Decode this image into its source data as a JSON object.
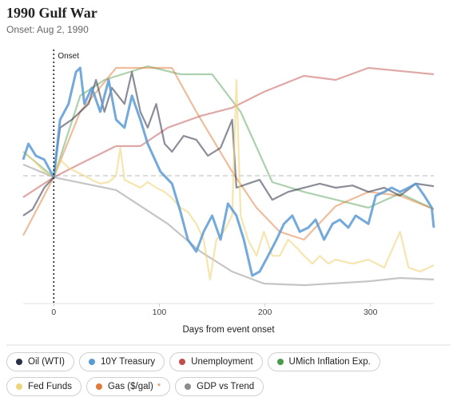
{
  "chart_data": {
    "type": "line",
    "title": "1990 Gulf War",
    "subtitle": "Onset: Aug 2, 1990",
    "x_label": "Days from event onset",
    "annotations": [
      {
        "x": 0,
        "label": "Onset"
      }
    ],
    "reference_line": 0,
    "xlim": [
      -29,
      360
    ],
    "xticks": [
      0,
      100,
      200,
      300
    ],
    "ylim": [
      -5,
      5
    ],
    "series": [
      {
        "name": "Oil (WTI)",
        "color": "#2b2f45",
        "opacity": 0.55,
        "x": [
          -29,
          -20,
          -9,
          0,
          6,
          17,
          33,
          40,
          48,
          55,
          67,
          74,
          82,
          89,
          97,
          105,
          112,
          123,
          135,
          146,
          158,
          169,
          173,
          184,
          195,
          207,
          222,
          237,
          252,
          267,
          283,
          298,
          313,
          328,
          343,
          360
        ],
        "values": [
          -1.56,
          -1.31,
          -0.47,
          -0.06,
          1.88,
          2.19,
          2.81,
          3.75,
          2.5,
          3.44,
          2.81,
          4.06,
          2.5,
          1.88,
          2.81,
          1.25,
          0.94,
          1.56,
          1.41,
          0.78,
          1.09,
          2.19,
          -0.47,
          -0.31,
          -0.16,
          -0.94,
          -0.63,
          -0.47,
          -0.31,
          -0.47,
          -0.38,
          -0.63,
          -0.47,
          -0.78,
          -0.31,
          -0.41
        ]
      },
      {
        "name": "10Y Treasury",
        "color": "#5b9bd5",
        "opacity": 0.85,
        "x": [
          -29,
          -24,
          -17,
          -9,
          0,
          6,
          14,
          21,
          25,
          29,
          36,
          44,
          52,
          59,
          67,
          74,
          82,
          89,
          101,
          112,
          120,
          127,
          135,
          142,
          150,
          158,
          165,
          173,
          180,
          188,
          195,
          203,
          211,
          218,
          226,
          233,
          241,
          248,
          256,
          264,
          271,
          279,
          286,
          298,
          305,
          313,
          320,
          328,
          336,
          343,
          351,
          358,
          360
        ],
        "values": [
          0.63,
          1.25,
          0.78,
          0.63,
          -0.06,
          2.19,
          2.81,
          4.06,
          4.22,
          2.81,
          3.44,
          2.5,
          3.75,
          2.19,
          1.88,
          3.13,
          2.19,
          1.25,
          0.16,
          -0.31,
          -1.41,
          -2.5,
          -2.97,
          -2.19,
          -1.56,
          -2.5,
          -1.09,
          -1.56,
          -2.5,
          -3.91,
          -3.75,
          -3.13,
          -2.5,
          -1.88,
          -1.56,
          -2.19,
          -2.03,
          -1.72,
          -2.5,
          -1.88,
          -1.72,
          -2.03,
          -1.56,
          -1.88,
          -0.78,
          -0.63,
          -0.47,
          -0.63,
          -0.47,
          -0.31,
          -0.78,
          -1.25,
          -2.03
        ]
      },
      {
        "name": "Unemployment",
        "color": "#c0504d",
        "opacity": 0.5,
        "x": [
          -29,
          0,
          25,
          59,
          82,
          108,
          139,
          169,
          199,
          237,
          267,
          298,
          360
        ],
        "values": [
          -0.84,
          -0.06,
          0.47,
          1.16,
          1.16,
          1.88,
          2.34,
          2.66,
          3.28,
          3.91,
          3.75,
          4.22,
          3.97
        ]
      },
      {
        "name": "UMich Inflation Exp.",
        "color": "#4a9a4a",
        "opacity": 0.45,
        "x": [
          -29,
          0,
          25,
          48,
          89,
          120,
          150,
          177,
          207,
          237,
          298,
          328,
          360
        ],
        "values": [
          0.94,
          -0.06,
          3.13,
          3.75,
          4.28,
          3.97,
          3.97,
          2.5,
          -0.25,
          -0.63,
          -1.25,
          -0.69,
          -1.31
        ]
      },
      {
        "name": "Fed Funds",
        "color": "#f0d47a",
        "opacity": 0.6,
        "x": [
          -29,
          -20,
          -9,
          0,
          6,
          14,
          21,
          29,
          36,
          44,
          52,
          59,
          63,
          67,
          74,
          82,
          89,
          97,
          105,
          112,
          120,
          127,
          135,
          142,
          148,
          154,
          161,
          169,
          173,
          177,
          184,
          192,
          199,
          207,
          214,
          222,
          230,
          237,
          245,
          252,
          260,
          267,
          283,
          298,
          313,
          328,
          336,
          347,
          360
        ],
        "values": [
          0.94,
          0.63,
          0.16,
          -0.06,
          0.63,
          0.31,
          0.16,
          0,
          -0.16,
          -0.31,
          -0.25,
          0,
          1.09,
          -0.16,
          -0.31,
          -0.47,
          -0.25,
          -0.47,
          -0.63,
          -0.88,
          -1.25,
          -1.41,
          -1.88,
          -2.5,
          -4.06,
          -2.5,
          -2.19,
          -1.56,
          3.75,
          -1.56,
          -2.5,
          -3.13,
          -2.19,
          -3.13,
          -3.13,
          -2.5,
          -2.81,
          -3.13,
          -3.44,
          -3.13,
          -3.44,
          -3.28,
          -3.44,
          -3.28,
          -3.59,
          -2.19,
          -3.59,
          -3.75,
          -3.5
        ]
      },
      {
        "name": "Gas ($/gal)",
        "note": "*",
        "color": "#e07b39",
        "opacity": 0.5,
        "x": [
          -29,
          0,
          25,
          59,
          112,
          135,
          169,
          192,
          214,
          237,
          267,
          298,
          328,
          360
        ],
        "values": [
          -2.34,
          -0.06,
          2.5,
          4.22,
          4.22,
          2.5,
          0.16,
          -1.25,
          -2.19,
          -2.5,
          -1.19,
          -0.63,
          -0.78,
          -1.31
        ]
      },
      {
        "name": "GDP vs Trend",
        "color": "#8c8c8c",
        "opacity": 0.5,
        "x": [
          -29,
          0,
          59,
          108,
          139,
          169,
          199,
          237,
          298,
          328,
          360
        ],
        "values": [
          0.44,
          -0.06,
          -0.56,
          -1.88,
          -2.97,
          -3.75,
          -4.22,
          -4.28,
          -4.13,
          -4.0,
          -4.06
        ]
      }
    ]
  }
}
